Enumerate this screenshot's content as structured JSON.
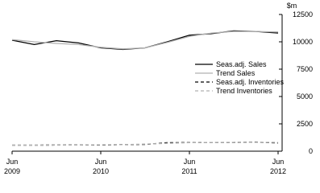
{
  "chart_data": {
    "type": "line",
    "y_unit": "$m",
    "categories": [
      [
        "Jun",
        "2009"
      ],
      null,
      null,
      null,
      [
        "Jun",
        "2010"
      ],
      null,
      null,
      null,
      [
        "Jun",
        "2011"
      ],
      null,
      null,
      null,
      [
        "Jun",
        "2012"
      ]
    ],
    "series": [
      {
        "name": "Seas.adj. Sales",
        "color": "#000000",
        "dash": "solid",
        "values": [
          10150,
          9750,
          10100,
          9900,
          9450,
          9300,
          9450,
          10000,
          10600,
          10750,
          11000,
          10950,
          10800
        ]
      },
      {
        "name": "Trend Sales",
        "color": "#b0b0b0",
        "dash": "solid",
        "values": [
          10200,
          10000,
          9850,
          9750,
          9500,
          9350,
          9450,
          9950,
          10500,
          10800,
          10950,
          10950,
          10900
        ]
      },
      {
        "name": "Seas.adj. Inventories",
        "color": "#000000",
        "dash": "dashed",
        "values": [
          550,
          550,
          560,
          570,
          560,
          600,
          620,
          780,
          790,
          800,
          800,
          820,
          760
        ]
      },
      {
        "name": "Trend Inventories",
        "color": "#b0b0b0",
        "dash": "dashed",
        "values": [
          540,
          545,
          555,
          565,
          580,
          600,
          650,
          720,
          780,
          800,
          810,
          810,
          800
        ]
      }
    ],
    "ylim": [
      0,
      12500
    ],
    "yticks": [
      0,
      2500,
      5000,
      7500,
      10000,
      12500
    ],
    "grid": false
  }
}
